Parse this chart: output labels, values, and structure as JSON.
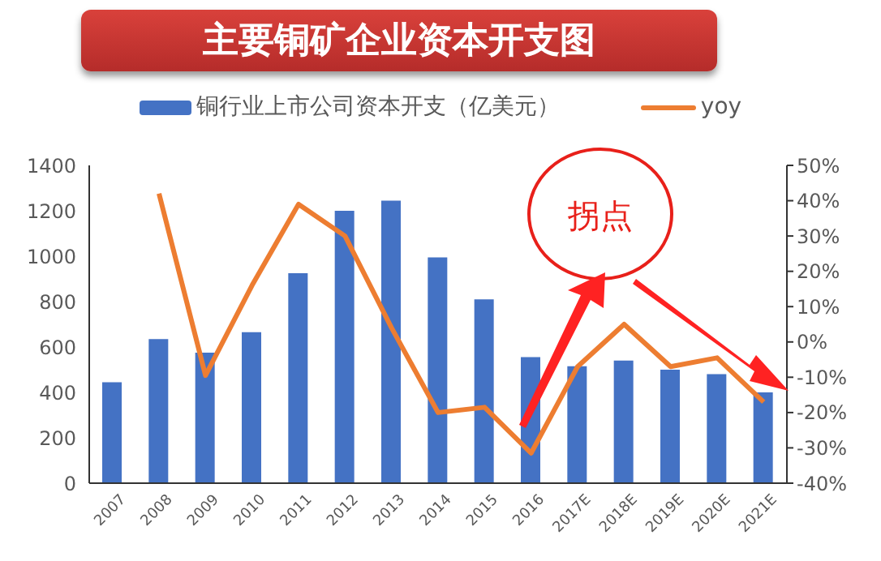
{
  "chart_data": {
    "type": "bar",
    "title": "主要铜矿企业资本开支图",
    "categories": [
      "2007",
      "2008",
      "2009",
      "2010",
      "2011",
      "2012",
      "2013",
      "2014",
      "2015",
      "2016",
      "2017E",
      "2018E",
      "2019E",
      "2020E",
      "2021E"
    ],
    "series": [
      {
        "name": "铜行业上市公司资本开支（亿美元）",
        "color": "#4472c4",
        "values": [
          445,
          635,
          575,
          665,
          925,
          1200,
          1245,
          995,
          810,
          555,
          515,
          540,
          500,
          480,
          400
        ]
      },
      {
        "name": "yoy",
        "type": "line",
        "axis": "y2",
        "color": "#ed7d31",
        "values": [
          null,
          42,
          -9.5,
          16,
          39,
          30,
          4,
          -20,
          -18.5,
          -31.5,
          -7,
          5,
          -7,
          -4.5,
          -17
        ]
      }
    ],
    "ylim": [
      0,
      1400
    ],
    "yticks": [
      0,
      200,
      400,
      600,
      800,
      1000,
      1200,
      1400
    ],
    "y2lim": [
      -40,
      50
    ],
    "y2ticks": [
      {
        "value": -40,
        "label": "-40%"
      },
      {
        "value": -30,
        "label": "-30%"
      },
      {
        "value": -20,
        "label": "-20%"
      },
      {
        "value": -10,
        "label": "-10%"
      },
      {
        "value": 0,
        "label": "0%"
      },
      {
        "value": 10,
        "label": "10%"
      },
      {
        "value": 20,
        "label": "20%"
      },
      {
        "value": 30,
        "label": "30%"
      },
      {
        "value": 40,
        "label": "40%"
      },
      {
        "value": 50,
        "label": "50%"
      }
    ],
    "annotations": [
      "拐点"
    ],
    "legend": "top",
    "grid": false,
    "marker": "none",
    "line_style": "solid"
  }
}
